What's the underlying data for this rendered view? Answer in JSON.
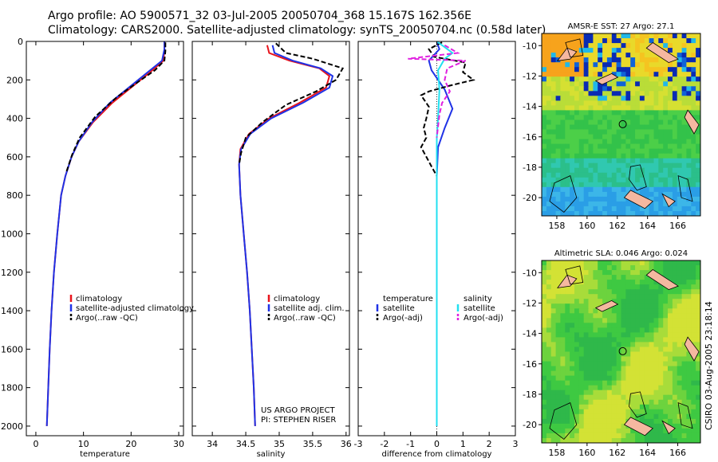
{
  "header": {
    "line1": "Argo profile: AO 5900571_32 03-Jul-2005 20050704_368 15.167S 162.356E",
    "line2": "Climatology: CARS2000. Satellite-adjusted climatology: synTS_20050704.nc (0.58d later)"
  },
  "credit": "CSIRO 03-Aug-2005 23:18:14",
  "project_note": [
    "US ARGO PROJECT",
    "PI: STEPHEN RISER"
  ],
  "colors": {
    "clim": "#e8141c",
    "sat": "#1f32e6",
    "argo": "#000000",
    "sal_sat": "#22e0f0",
    "sal_argo": "#e020e0",
    "sst_sea_hi": "#f6a21c",
    "sla_sea": "#33cc33",
    "land": "#f5b8a0"
  },
  "chart_data": [
    {
      "id": "temperature",
      "type": "line",
      "xlabel": "temperature",
      "ylabel": "",
      "xlim": [
        -2,
        31
      ],
      "ylim": [
        2050,
        0
      ],
      "xticks": [
        0,
        10,
        20,
        30
      ],
      "yticks": [
        0,
        200,
        400,
        600,
        800,
        1000,
        1200,
        1400,
        1600,
        1800,
        2000
      ],
      "legend": [
        "climatology",
        "satellite-adjusted climatology",
        "Argo(..raw -QC)"
      ],
      "series": [
        {
          "name": "climatology",
          "color": "clim",
          "dash": "",
          "points": [
            [
              27,
              0
            ],
            [
              27,
              40
            ],
            [
              26.8,
              100
            ],
            [
              24,
              160
            ],
            [
              20,
              240
            ],
            [
              16,
              320
            ],
            [
              12,
              420
            ],
            [
              9,
              520
            ],
            [
              7.5,
              600
            ],
            [
              6.2,
              700
            ],
            [
              5.3,
              800
            ],
            [
              4.5,
              1000
            ],
            [
              3.8,
              1200
            ],
            [
              3.3,
              1400
            ],
            [
              2.9,
              1600
            ],
            [
              2.6,
              1800
            ],
            [
              2.3,
              2000
            ]
          ]
        },
        {
          "name": "satellite-adjusted climatology",
          "color": "sat",
          "dash": "",
          "points": [
            [
              27,
              0
            ],
            [
              27,
              40
            ],
            [
              26.5,
              100
            ],
            [
              23.5,
              160
            ],
            [
              19.5,
              240
            ],
            [
              15.5,
              320
            ],
            [
              11.8,
              420
            ],
            [
              9,
              520
            ],
            [
              7.5,
              600
            ],
            [
              6.2,
              700
            ],
            [
              5.3,
              800
            ],
            [
              4.5,
              1000
            ],
            [
              3.8,
              1200
            ],
            [
              3.3,
              1400
            ],
            [
              2.9,
              1600
            ],
            [
              2.6,
              1800
            ],
            [
              2.3,
              2000
            ]
          ]
        },
        {
          "name": "Argo(..raw -QC)",
          "color": "argo",
          "dash": "6,3",
          "points": [
            [
              27.2,
              5
            ],
            [
              27.2,
              50
            ],
            [
              27,
              100
            ],
            [
              25,
              150
            ],
            [
              21.5,
              210
            ],
            [
              17,
              290
            ],
            [
              12.5,
              390
            ],
            [
              9.2,
              500
            ],
            [
              7.6,
              590
            ],
            [
              6.4,
              680
            ]
          ]
        }
      ]
    },
    {
      "id": "salinity",
      "type": "line",
      "xlabel": "salinity",
      "ylabel": "",
      "xlim": [
        33.7,
        36.05
      ],
      "ylim": [
        2050,
        0
      ],
      "xticks": [
        34,
        34.5,
        35,
        35.5,
        36
      ],
      "yticks": [
        0,
        200,
        400,
        600,
        800,
        1000,
        1200,
        1400,
        1600,
        1800,
        2000
      ],
      "legend": [
        "climatology",
        "satellite adj. clim.",
        "Argo(..raw -QC)"
      ],
      "series": [
        {
          "name": "climatology",
          "color": "clim",
          "dash": "",
          "points": [
            [
              34.82,
              20
            ],
            [
              34.85,
              60
            ],
            [
              35.15,
              100
            ],
            [
              35.6,
              140
            ],
            [
              35.75,
              180
            ],
            [
              35.7,
              240
            ],
            [
              35.3,
              320
            ],
            [
              34.85,
              400
            ],
            [
              34.55,
              480
            ],
            [
              34.42,
              560
            ],
            [
              34.4,
              640
            ],
            [
              34.42,
              800
            ],
            [
              34.47,
              1000
            ],
            [
              34.52,
              1200
            ],
            [
              34.56,
              1400
            ],
            [
              34.59,
              1600
            ],
            [
              34.62,
              1800
            ],
            [
              34.64,
              2000
            ]
          ]
        },
        {
          "name": "satellite adj. clim.",
          "color": "sat",
          "dash": "",
          "points": [
            [
              34.9,
              20
            ],
            [
              34.93,
              60
            ],
            [
              35.2,
              100
            ],
            [
              35.62,
              140
            ],
            [
              35.8,
              180
            ],
            [
              35.75,
              240
            ],
            [
              35.35,
              320
            ],
            [
              34.88,
              400
            ],
            [
              34.57,
              480
            ],
            [
              34.43,
              560
            ],
            [
              34.4,
              640
            ],
            [
              34.42,
              800
            ],
            [
              34.47,
              1000
            ],
            [
              34.52,
              1200
            ],
            [
              34.56,
              1400
            ],
            [
              34.59,
              1600
            ],
            [
              34.62,
              1800
            ],
            [
              34.64,
              2000
            ]
          ]
        },
        {
          "name": "Argo(..raw -QC)",
          "color": "argo",
          "dash": "6,3",
          "points": [
            [
              34.95,
              10
            ],
            [
              35.1,
              60
            ],
            [
              35.5,
              90
            ],
            [
              35.95,
              140
            ],
            [
              35.85,
              200
            ],
            [
              35.55,
              260
            ],
            [
              35.1,
              330
            ],
            [
              34.75,
              420
            ],
            [
              34.5,
              500
            ],
            [
              34.43,
              580
            ],
            [
              34.4,
              640
            ]
          ]
        }
      ]
    },
    {
      "id": "difference",
      "type": "line",
      "xlabel": "difference from climatology",
      "ylabel": "",
      "xlim": [
        -3,
        3
      ],
      "ylim": [
        2050,
        0
      ],
      "xticks": [
        -3,
        -2,
        -1,
        0,
        1,
        2,
        3
      ],
      "yticks": [
        0,
        200,
        400,
        600,
        800,
        1000,
        1200,
        1400,
        1600,
        1800,
        2000
      ],
      "legend_left": [
        "temperature",
        "satellite",
        "Argo(-adj)"
      ],
      "legend_right": [
        "salinity",
        "satellite",
        "Argo(-adj)"
      ],
      "series": [
        {
          "name": "temperature satellite",
          "color": "sat",
          "dash": "",
          "points": [
            [
              0,
              5
            ],
            [
              0.1,
              40
            ],
            [
              -0.3,
              100
            ],
            [
              -0.2,
              150
            ],
            [
              0.3,
              250
            ],
            [
              0.6,
              350
            ],
            [
              0.3,
              450
            ],
            [
              0.05,
              550
            ],
            [
              0,
              700
            ],
            [
              0,
              2000
            ]
          ]
        },
        {
          "name": "temperature Argo(-adj)",
          "color": "argo",
          "dash": "6,3",
          "points": [
            [
              0.2,
              5
            ],
            [
              -0.3,
              40
            ],
            [
              -0.1,
              80
            ],
            [
              1.1,
              110
            ],
            [
              1,
              160
            ],
            [
              1.4,
              200
            ],
            [
              0.5,
              230
            ],
            [
              -0.3,
              260
            ],
            [
              -0.6,
              280
            ],
            [
              -0.5,
              300
            ],
            [
              -0.3,
              340
            ],
            [
              -0.4,
              400
            ],
            [
              -0.5,
              450
            ],
            [
              -0.4,
              500
            ],
            [
              -0.6,
              550
            ],
            [
              -0.4,
              600
            ],
            [
              -0.2,
              650
            ],
            [
              0,
              700
            ]
          ]
        },
        {
          "name": "salinity satellite",
          "color": "sal_sat",
          "dash": "",
          "points": [
            [
              0,
              0
            ],
            [
              0.3,
              30
            ],
            [
              0.6,
              60
            ],
            [
              0.3,
              90
            ],
            [
              0.05,
              150
            ],
            [
              0.1,
              250
            ],
            [
              0.05,
              400
            ],
            [
              0,
              500
            ],
            [
              0,
              2000
            ]
          ]
        },
        {
          "name": "salinity Argo(-adj)",
          "color": "sal_argo",
          "dash": "6,3",
          "points": [
            [
              0.3,
              20
            ],
            [
              0.8,
              60
            ],
            [
              -1.1,
              90
            ],
            [
              1.1,
              100
            ],
            [
              0.4,
              140
            ],
            [
              0.3,
              200
            ],
            [
              0.5,
              260
            ],
            [
              0.2,
              320
            ],
            [
              0.1,
              380
            ],
            [
              0,
              500
            ]
          ]
        }
      ]
    },
    {
      "id": "sst-map",
      "type": "heatmap",
      "title": "AMSR-E SST: 27 Argo: 27.1",
      "xlim": [
        157,
        167.5
      ],
      "ylim": [
        -21.2,
        -9.2
      ],
      "xticks": [
        158,
        160,
        162,
        164,
        166
      ],
      "yticks": [
        -10,
        -12,
        -14,
        -16,
        -18,
        -20
      ],
      "float_position": [
        162.36,
        -15.17
      ]
    },
    {
      "id": "sla-map",
      "type": "heatmap",
      "title": "Altimetric SLA: 0.046 Argo: 0.024",
      "xlim": [
        157,
        167.5
      ],
      "ylim": [
        -21.2,
        -9.2
      ],
      "xticks": [
        158,
        160,
        162,
        164,
        166
      ],
      "yticks": [
        -10,
        -12,
        -14,
        -16,
        -18,
        -20
      ],
      "float_position": [
        162.36,
        -15.17
      ]
    }
  ]
}
